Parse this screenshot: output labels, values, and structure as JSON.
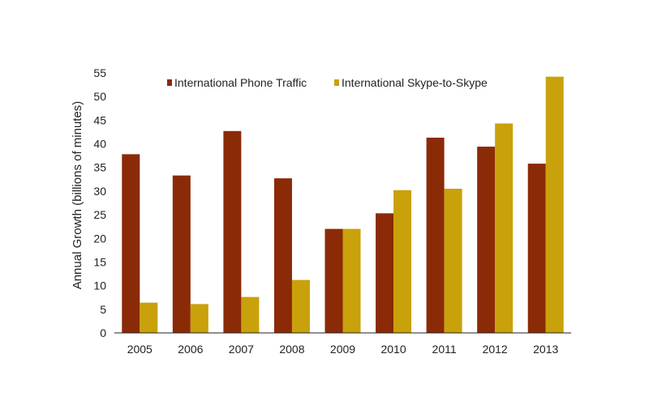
{
  "chart_data": {
    "type": "bar",
    "categories": [
      "2005",
      "2006",
      "2007",
      "2008",
      "2009",
      "2010",
      "2011",
      "2012",
      "2013"
    ],
    "series": [
      {
        "name": "International Phone Traffic",
        "color": "#8B2A07",
        "values": [
          37.8,
          33.3,
          42.7,
          32.7,
          22.0,
          25.3,
          41.3,
          39.4,
          35.8
        ]
      },
      {
        "name": "International Skype-to-Skype",
        "color": "#C9A10A",
        "values": [
          6.4,
          6.1,
          7.6,
          11.2,
          22.0,
          30.2,
          30.5,
          44.3,
          54.2
        ]
      }
    ],
    "title": "",
    "xlabel": "",
    "ylabel": "Annual Growth (billions of minutes)",
    "ylim": [
      0,
      55
    ],
    "yticks": [
      "0",
      "5",
      "10",
      "15",
      "20",
      "25",
      "30",
      "35",
      "40",
      "45",
      "50",
      "55"
    ],
    "grid": false,
    "legend": "top"
  }
}
